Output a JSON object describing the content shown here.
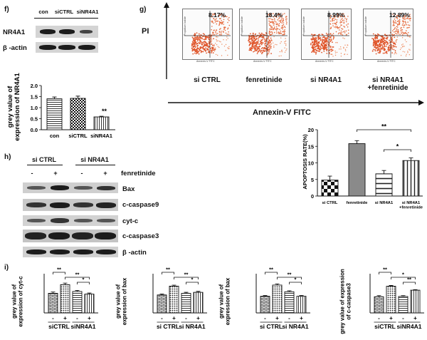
{
  "panels": {
    "f": "f)",
    "g": "g)",
    "h": "h)",
    "i": "i)"
  },
  "panel_f": {
    "lanes": [
      "con",
      "siCTRL",
      "siNR4A1"
    ],
    "rows": [
      "NR4A1",
      "β -actin"
    ]
  },
  "panel_g": {
    "y_label": "PI",
    "x_label": "Annexin-V FITC",
    "flow_axis_x": "Annexin-V FITC",
    "flow_axis_y": "Propidium Iodide",
    "plots": [
      {
        "label": "si CTRL",
        "pct": "8.17%"
      },
      {
        "label": "fenretinide",
        "pct": "18.4%"
      },
      {
        "label": "si NR4A1",
        "pct": "8.99%"
      },
      {
        "label": "si NR4A1\n+fenretinide",
        "pct": "12.89%"
      }
    ]
  },
  "panel_h": {
    "groups": [
      "si CTRL",
      "si NR4A1"
    ],
    "treatment_label": "fenretinide",
    "treatment_signs": [
      "-",
      "+",
      "-",
      "+"
    ],
    "rows": [
      "Bax",
      "c-caspase9",
      "cyt-c",
      "c-caspase3",
      "β -actin"
    ]
  },
  "chart_data": [
    {
      "id": "f-grey",
      "type": "bar",
      "categories": [
        "con",
        "siCTRL",
        "siNR4A1"
      ],
      "values": [
        1.4,
        1.42,
        0.58
      ],
      "errors": [
        0.08,
        0.1,
        0.03
      ],
      "ylabel": "grey value of\nexpression of NR4A1",
      "ylim": [
        0,
        2.0
      ],
      "yticks": [
        "0.0",
        "0.5",
        "1.0",
        "1.5",
        "2.0"
      ],
      "significance": [
        "",
        "",
        "**"
      ]
    },
    {
      "id": "g-apoptosis",
      "type": "bar",
      "categories": [
        "si CTRL",
        "fenretinide",
        "si NR4A1",
        "si NR4A1\n+fenretinide"
      ],
      "values": [
        4.8,
        15.8,
        6.7,
        10.7
      ],
      "errors": [
        1.2,
        0.9,
        1.0,
        0.8
      ],
      "ylabel": "APOPTOSIS RATE(%)",
      "ylim": [
        0,
        20
      ],
      "yticks": [
        "0",
        "5",
        "10",
        "15",
        "20"
      ],
      "brackets": [
        {
          "from": 1,
          "to": 3,
          "label": "**"
        },
        {
          "from": 2,
          "to": 3,
          "label": "*"
        }
      ]
    },
    {
      "id": "i-cytc",
      "type": "bar",
      "ylabel": "grey value of\nexpression of cyt-c",
      "signs": [
        "-",
        "+",
        "-",
        "+"
      ],
      "groups": [
        "siCTRL",
        "siNR4A1"
      ],
      "values": [
        0.75,
        1.08,
        0.82,
        0.72
      ],
      "errors": [
        0.05,
        0.06,
        0.04,
        0.04
      ],
      "ylim": [
        0,
        1.5
      ],
      "brackets": [
        {
          "from": 0,
          "to": 1,
          "label": "**"
        },
        {
          "from": 1,
          "to": 3,
          "label": "**"
        },
        {
          "from": 2,
          "to": 3,
          "label": "*"
        }
      ]
    },
    {
      "id": "i-bax1",
      "type": "bar",
      "ylabel": "grey value of\nexpression of bax",
      "signs": [
        "-",
        "+",
        "-",
        "+"
      ],
      "groups": [
        "si CTRL",
        "si NR4A1"
      ],
      "values": [
        0.55,
        0.82,
        0.6,
        0.63
      ],
      "errors": [
        0.03,
        0.03,
        0.03,
        0.03
      ],
      "ylim": [
        0,
        1.2
      ],
      "brackets": [
        {
          "from": 0,
          "to": 1,
          "label": "**"
        },
        {
          "from": 1,
          "to": 3,
          "label": "**"
        },
        {
          "from": 2,
          "to": 3,
          "label": "*"
        }
      ]
    },
    {
      "id": "i-bax2",
      "type": "bar",
      "ylabel": "grey value of\nexpression of bax",
      "signs": [
        "-",
        "+",
        "-",
        "+"
      ],
      "groups": [
        "si CTRL",
        "si NR4A1"
      ],
      "values": [
        0.85,
        1.42,
        1.08,
        0.85
      ],
      "errors": [
        0.04,
        0.06,
        0.05,
        0.04
      ],
      "ylim": [
        0,
        2.0
      ],
      "brackets": [
        {
          "from": 0,
          "to": 1,
          "label": "**"
        },
        {
          "from": 1,
          "to": 3,
          "label": "**"
        },
        {
          "from": 2,
          "to": 3,
          "label": "*"
        }
      ]
    },
    {
      "id": "i-casp3",
      "type": "bar",
      "ylabel": "grey value of expression\nof c-caspase3",
      "signs": [
        "-",
        "+",
        "-",
        "+"
      ],
      "groups": [
        "siCTRL",
        "siNR4A1"
      ],
      "values": [
        1.65,
        2.72,
        1.68,
        2.32
      ],
      "errors": [
        0.12,
        0.08,
        0.08,
        0.06
      ],
      "ylim": [
        0,
        4.0
      ],
      "brackets": [
        {
          "from": 0,
          "to": 1,
          "label": "**"
        },
        {
          "from": 1,
          "to": 3,
          "label": "*"
        },
        {
          "from": 2,
          "to": 3,
          "label": "**"
        }
      ]
    }
  ]
}
